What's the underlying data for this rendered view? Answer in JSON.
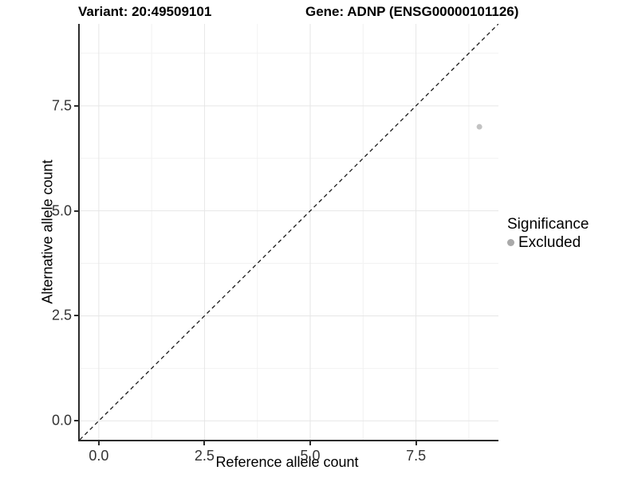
{
  "titles": {
    "variant": "Variant: 20:49509101",
    "gene": "Gene: ADNP (ENSG00000101126)"
  },
  "axes": {
    "x": {
      "label": "Reference allele count",
      "tick_labels": [
        "0.0",
        "2.5",
        "5.0",
        "7.5"
      ],
      "tick_values": [
        0,
        2.5,
        5,
        7.5
      ],
      "minor_values": [
        1.25,
        3.75,
        6.25,
        8.75
      ],
      "range": [
        -0.45,
        9.45
      ]
    },
    "y": {
      "label": "Alternative allele count",
      "tick_labels": [
        "0.0",
        "2.5",
        "5.0",
        "7.5"
      ],
      "tick_values": [
        0,
        2.5,
        5,
        7.5
      ],
      "minor_values": [
        1.25,
        3.75,
        6.25,
        8.75
      ],
      "range": [
        -0.45,
        9.45
      ]
    }
  },
  "legend": {
    "title": "Significance",
    "items": [
      {
        "label": "Excluded",
        "color": "#a9a9a9"
      }
    ]
  },
  "chart_data": {
    "type": "scatter",
    "title": "Variant: 20:49509101 | Gene: ADNP (ENSG00000101126)",
    "xlabel": "Reference allele count",
    "ylabel": "Alternative allele count",
    "xlim": [
      -0.45,
      9.45
    ],
    "ylim": [
      -0.45,
      9.45
    ],
    "series": [
      {
        "name": "Excluded",
        "points": [
          [
            9,
            7
          ]
        ],
        "color": "#c2c2c2",
        "point_radius": 3.5
      }
    ],
    "reference_line": {
      "type": "abline",
      "intercept": 0,
      "slope": 1,
      "style": "dashed",
      "color": "#1a1a1a"
    },
    "grid": "major+minor",
    "legend_position": "right"
  },
  "colors": {
    "major_grid": "#e6e6e6",
    "minor_grid": "#f2f2f2",
    "axis_line": "#2b2b2b",
    "tick_label": "#333333",
    "background": "#ffffff"
  }
}
